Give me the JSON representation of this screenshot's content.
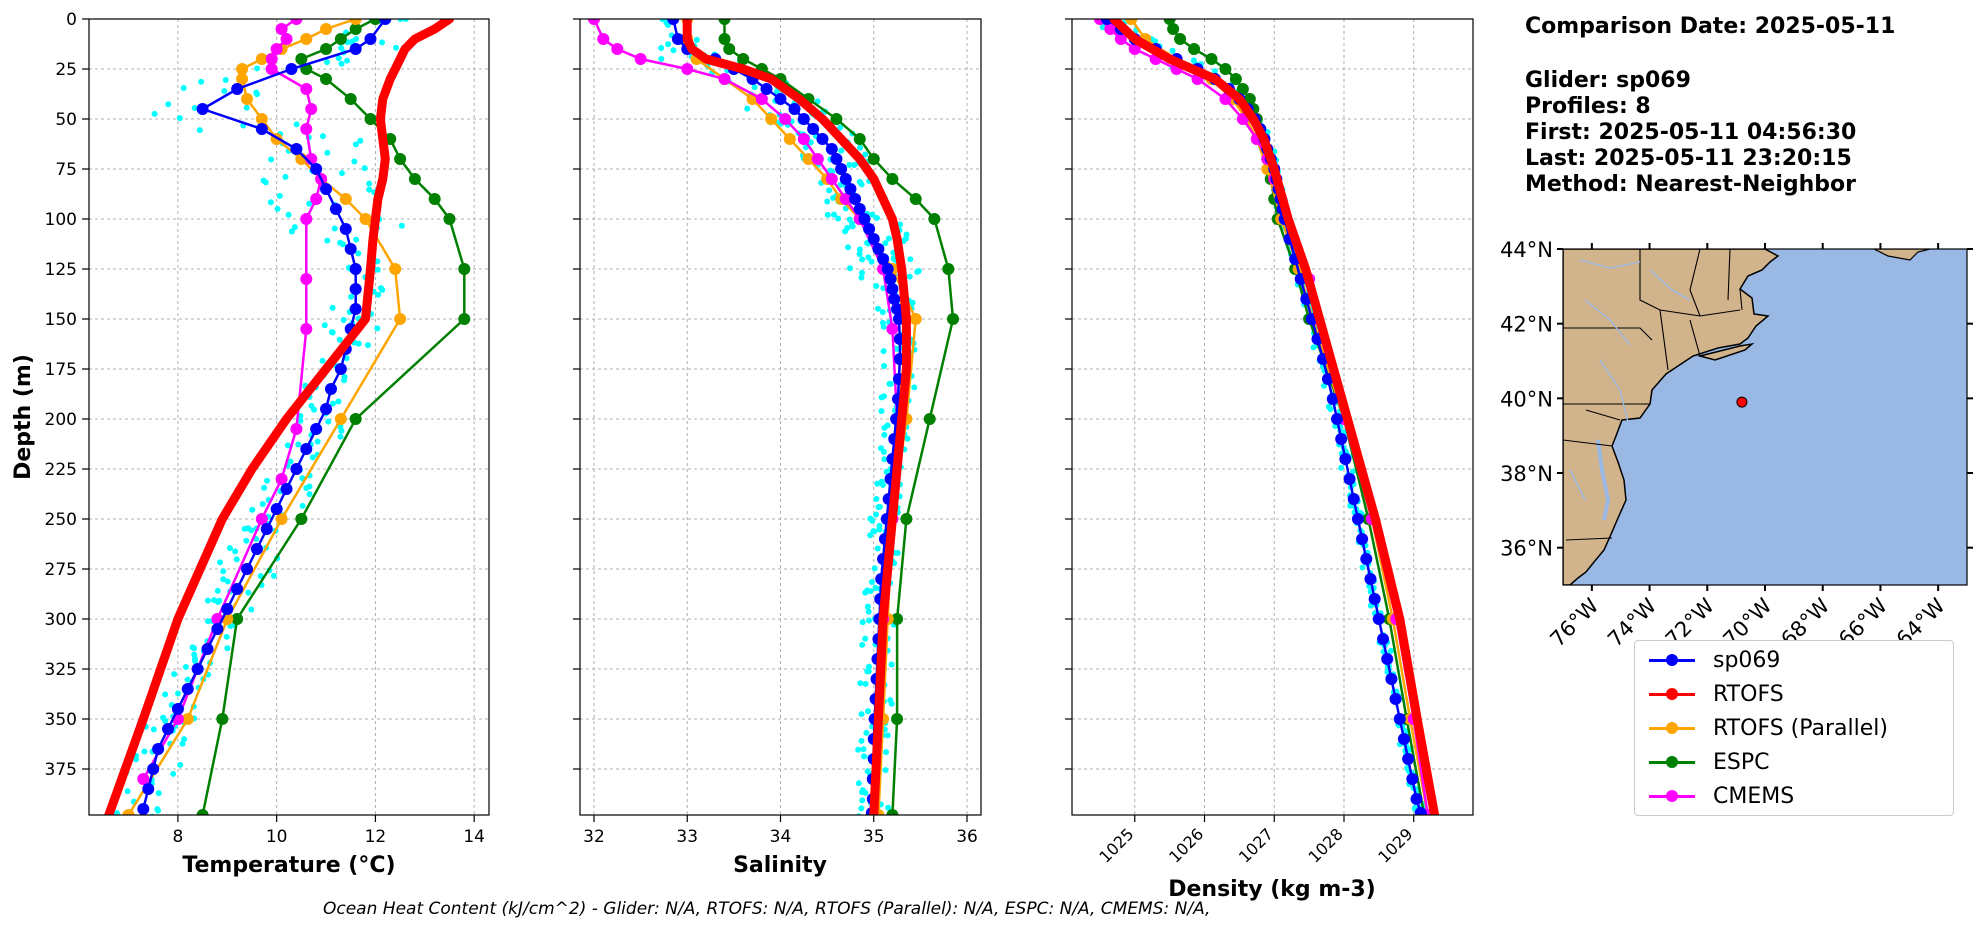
{
  "info": {
    "date_line": "Comparison Date: 2025-05-11",
    "glider_line": "Glider: sp069",
    "profiles_line": "Profiles: 8",
    "first_line": "First: 2025-05-11 04:56:30",
    "last_line": "Last: 2025-05-11 23:20:15",
    "method_line": "Method: Nearest-Neighbor"
  },
  "footer": "Ocean Heat Content (kJ/cm^2) - Glider: N/A,  RTOFS: N/A,  RTOFS (Parallel): N/A,  ESPC: N/A,  CMEMS: N/A,",
  "colors": {
    "sp069": "#0000ff",
    "RTOFS": "#ff0000",
    "RTOFS (Parallel)": "#ffa500",
    "ESPC": "#008000",
    "CMEMS": "#ff00ff",
    "glider_raw": "#00ffff",
    "land": "#d2b48c",
    "ocean": "#9ab8e4"
  },
  "legend": [
    {
      "label": "sp069",
      "color": "#0000ff"
    },
    {
      "label": "RTOFS",
      "color": "#ff0000"
    },
    {
      "label": "RTOFS (Parallel)",
      "color": "#ffa500"
    },
    {
      "label": "ESPC",
      "color": "#008000"
    },
    {
      "label": "CMEMS",
      "color": "#ff00ff"
    }
  ],
  "chart_data": [
    {
      "type": "line",
      "xlabel": "Temperature (°C)",
      "ylabel": "Depth (m)",
      "xlim": [
        6.2,
        14.3
      ],
      "ylim": [
        398,
        0
      ],
      "xticks": [
        8,
        10,
        12,
        14
      ],
      "xtick_labels": [
        "8",
        "10",
        "12",
        "14"
      ],
      "yticks": [
        0,
        25,
        50,
        75,
        100,
        125,
        150,
        175,
        200,
        225,
        250,
        275,
        300,
        325,
        350,
        375
      ],
      "ytick_labels": [
        "0",
        "25",
        "50",
        "75",
        "100",
        "125",
        "150",
        "175",
        "200",
        "225",
        "250",
        "275",
        "300",
        "325",
        "350",
        "375"
      ],
      "grid": true,
      "series": [
        {
          "name": "sp069",
          "depth": [
            0,
            10,
            15,
            25,
            35,
            45,
            55,
            65,
            75,
            85,
            95,
            105,
            115,
            125,
            135,
            145,
            155,
            165,
            175,
            185,
            195,
            205,
            215,
            225,
            235,
            245,
            255,
            265,
            275,
            285,
            295,
            305,
            315,
            325,
            335,
            345,
            355,
            365,
            375,
            385,
            395
          ],
          "values": [
            12.2,
            11.9,
            11.6,
            10.3,
            9.2,
            8.5,
            9.7,
            10.4,
            10.8,
            11.0,
            11.2,
            11.4,
            11.5,
            11.6,
            11.6,
            11.6,
            11.5,
            11.4,
            11.3,
            11.1,
            11.0,
            10.8,
            10.6,
            10.4,
            10.2,
            10.0,
            9.8,
            9.6,
            9.4,
            9.2,
            9.0,
            8.8,
            8.6,
            8.4,
            8.2,
            8.0,
            7.8,
            7.6,
            7.5,
            7.4,
            7.3
          ]
        },
        {
          "name": "RTOFS",
          "depth": [
            0,
            5,
            10,
            15,
            20,
            25,
            30,
            40,
            50,
            60,
            70,
            80,
            90,
            100,
            110,
            125,
            150,
            175,
            200,
            225,
            250,
            300,
            350,
            398
          ],
          "values": [
            13.5,
            13.2,
            12.8,
            12.6,
            12.5,
            12.4,
            12.3,
            12.15,
            12.1,
            12.15,
            12.2,
            12.15,
            12.05,
            12.0,
            11.95,
            11.9,
            11.8,
            11.0,
            10.2,
            9.5,
            8.9,
            8.0,
            7.3,
            6.6
          ]
        },
        {
          "name": "RTOFS (Parallel)",
          "depth": [
            0,
            5,
            10,
            15,
            20,
            25,
            30,
            40,
            50,
            60,
            70,
            80,
            90,
            100,
            125,
            150,
            200,
            250,
            300,
            350,
            398
          ],
          "values": [
            11.6,
            11.0,
            10.6,
            10.1,
            9.7,
            9.3,
            9.3,
            9.4,
            9.7,
            10.0,
            10.5,
            10.9,
            11.4,
            11.8,
            12.4,
            12.5,
            11.3,
            10.1,
            9.0,
            8.2,
            7.0
          ]
        },
        {
          "name": "ESPC",
          "depth": [
            0,
            5,
            10,
            15,
            20,
            25,
            30,
            40,
            50,
            60,
            70,
            80,
            90,
            100,
            125,
            150,
            200,
            250,
            300,
            350,
            398
          ],
          "values": [
            12.0,
            11.6,
            11.3,
            11.0,
            10.5,
            10.6,
            11.0,
            11.5,
            11.9,
            12.3,
            12.5,
            12.8,
            13.2,
            13.5,
            13.8,
            13.8,
            11.6,
            10.5,
            9.2,
            8.9,
            8.5
          ]
        },
        {
          "name": "CMEMS",
          "depth": [
            0,
            5,
            10,
            15,
            20,
            25,
            35,
            45,
            55,
            70,
            80,
            90,
            100,
            130,
            155,
            205,
            230,
            250,
            300,
            350,
            380
          ],
          "values": [
            10.4,
            10.1,
            10.2,
            10.0,
            9.9,
            9.9,
            10.6,
            10.7,
            10.6,
            10.7,
            10.9,
            10.8,
            10.6,
            10.6,
            10.6,
            10.4,
            10.1,
            9.7,
            8.8,
            8.0,
            7.3
          ]
        }
      ]
    },
    {
      "type": "line",
      "xlabel": "Salinity",
      "ylabel": "",
      "xlim": [
        31.85,
        36.15
      ],
      "ylim": [
        398,
        0
      ],
      "xticks": [
        32,
        33,
        34,
        35,
        36
      ],
      "xtick_labels": [
        "32",
        "33",
        "34",
        "35",
        "36"
      ],
      "yticks": [
        0,
        25,
        50,
        75,
        100,
        125,
        150,
        175,
        200,
        225,
        250,
        275,
        300,
        325,
        350,
        375
      ],
      "grid": true,
      "series": [
        {
          "name": "sp069",
          "depth": [
            0,
            10,
            15,
            20,
            25,
            30,
            35,
            40,
            45,
            50,
            55,
            60,
            65,
            70,
            75,
            80,
            85,
            90,
            95,
            100,
            105,
            110,
            115,
            120,
            125,
            130,
            135,
            140,
            145,
            150,
            160,
            170,
            180,
            190,
            200,
            210,
            220,
            230,
            240,
            250,
            260,
            270,
            280,
            290,
            300,
            310,
            320,
            330,
            340,
            350,
            360,
            370,
            380,
            390,
            397
          ],
          "values": [
            32.85,
            32.9,
            33.0,
            33.3,
            33.5,
            33.7,
            33.85,
            34.0,
            34.15,
            34.25,
            34.35,
            34.45,
            34.55,
            34.6,
            34.65,
            34.7,
            34.75,
            34.8,
            34.85,
            34.9,
            34.95,
            35.0,
            35.05,
            35.1,
            35.15,
            35.18,
            35.2,
            35.22,
            35.25,
            35.27,
            35.28,
            35.28,
            35.27,
            35.26,
            35.24,
            35.22,
            35.2,
            35.18,
            35.16,
            35.14,
            35.12,
            35.1,
            35.08,
            35.07,
            35.06,
            35.05,
            35.04,
            35.03,
            35.02,
            35.01,
            35.0,
            35.0,
            34.99,
            34.99,
            34.98
          ]
        },
        {
          "name": "RTOFS",
          "depth": [
            0,
            10,
            15,
            20,
            25,
            30,
            40,
            50,
            60,
            70,
            80,
            90,
            100,
            110,
            125,
            150,
            175,
            200,
            250,
            300,
            350,
            398
          ],
          "values": [
            33.0,
            33.0,
            33.05,
            33.2,
            33.6,
            33.9,
            34.2,
            34.45,
            34.65,
            34.85,
            35.0,
            35.1,
            35.2,
            35.25,
            35.3,
            35.35,
            35.35,
            35.3,
            35.2,
            35.1,
            35.05,
            35.0
          ]
        },
        {
          "name": "RTOFS (Parallel)",
          "depth": [
            0,
            10,
            20,
            30,
            40,
            50,
            60,
            70,
            80,
            90,
            100,
            125,
            150,
            200,
            250,
            300,
            350,
            398
          ],
          "values": [
            33.0,
            33.0,
            33.1,
            33.4,
            33.7,
            33.9,
            34.1,
            34.3,
            34.5,
            34.65,
            34.85,
            35.2,
            35.45,
            35.35,
            35.2,
            35.15,
            35.1,
            35.05
          ]
        },
        {
          "name": "ESPC",
          "depth": [
            0,
            10,
            15,
            20,
            25,
            30,
            40,
            50,
            60,
            70,
            80,
            90,
            100,
            125,
            150,
            200,
            250,
            300,
            350,
            398
          ],
          "values": [
            33.4,
            33.4,
            33.45,
            33.6,
            33.8,
            34.0,
            34.3,
            34.6,
            34.85,
            35.0,
            35.2,
            35.45,
            35.65,
            35.8,
            35.85,
            35.6,
            35.35,
            35.25,
            35.25,
            35.2
          ]
        },
        {
          "name": "CMEMS",
          "depth": [
            0,
            10,
            15,
            20,
            25,
            30,
            40,
            50,
            60,
            70,
            80,
            90,
            100,
            125,
            155,
            200,
            250,
            300,
            350,
            398
          ],
          "values": [
            32.0,
            32.1,
            32.25,
            32.5,
            33.0,
            33.4,
            33.8,
            34.05,
            34.25,
            34.4,
            34.55,
            34.7,
            34.85,
            35.1,
            35.2,
            35.25,
            35.2,
            35.1,
            35.02,
            34.98
          ]
        }
      ]
    },
    {
      "type": "line",
      "xlabel": "Density (kg m-3)",
      "ylabel": "",
      "xlim": [
        1024.1,
        1029.85
      ],
      "ylim": [
        398,
        0
      ],
      "xticks": [
        1025,
        1026,
        1027,
        1028,
        1029
      ],
      "xtick_labels": [
        "1025",
        "1026",
        "1027",
        "1028",
        "1029"
      ],
      "yticks": [
        0,
        25,
        50,
        75,
        100,
        125,
        150,
        175,
        200,
        225,
        250,
        275,
        300,
        325,
        350,
        375
      ],
      "grid": true,
      "series": [
        {
          "name": "sp069",
          "depth": [
            0,
            5,
            10,
            15,
            20,
            25,
            30,
            35,
            40,
            45,
            50,
            55,
            60,
            65,
            70,
            75,
            80,
            85,
            90,
            95,
            100,
            110,
            120,
            130,
            140,
            150,
            160,
            170,
            180,
            190,
            200,
            210,
            220,
            230,
            240,
            250,
            260,
            270,
            280,
            290,
            300,
            310,
            320,
            330,
            340,
            350,
            360,
            370,
            380,
            390,
            397
          ],
          "values": [
            1024.6,
            1024.8,
            1025.0,
            1025.3,
            1025.6,
            1025.9,
            1026.15,
            1026.35,
            1026.5,
            1026.62,
            1026.72,
            1026.8,
            1026.86,
            1026.9,
            1026.95,
            1027.0,
            1027.03,
            1027.06,
            1027.09,
            1027.12,
            1027.15,
            1027.22,
            1027.3,
            1027.38,
            1027.46,
            1027.54,
            1027.62,
            1027.7,
            1027.77,
            1027.84,
            1027.9,
            1027.96,
            1028.02,
            1028.08,
            1028.14,
            1028.2,
            1028.26,
            1028.32,
            1028.38,
            1028.44,
            1028.5,
            1028.56,
            1028.62,
            1028.68,
            1028.74,
            1028.8,
            1028.86,
            1028.92,
            1028.98,
            1029.04,
            1029.1
          ]
        },
        {
          "name": "RTOFS",
          "depth": [
            0,
            10,
            20,
            30,
            40,
            50,
            60,
            75,
            100,
            125,
            150,
            200,
            250,
            300,
            350,
            398
          ],
          "values": [
            1024.7,
            1025.0,
            1025.5,
            1026.15,
            1026.5,
            1026.7,
            1026.85,
            1027.0,
            1027.2,
            1027.45,
            1027.65,
            1028.05,
            1028.45,
            1028.8,
            1029.05,
            1029.3
          ]
        },
        {
          "name": "RTOFS (Parallel)",
          "depth": [
            0,
            10,
            20,
            30,
            40,
            50,
            60,
            75,
            100,
            125,
            150,
            200,
            250,
            300,
            350,
            398
          ],
          "values": [
            1024.95,
            1025.15,
            1025.6,
            1026.1,
            1026.4,
            1026.6,
            1026.75,
            1026.9,
            1027.1,
            1027.35,
            1027.55,
            1028.0,
            1028.4,
            1028.7,
            1028.95,
            1029.2
          ]
        },
        {
          "name": "ESPC",
          "depth": [
            0,
            5,
            10,
            15,
            20,
            25,
            30,
            35,
            40,
            45,
            50,
            60,
            70,
            80,
            90,
            100,
            125,
            150,
            200,
            250,
            300,
            350,
            398
          ],
          "values": [
            1025.5,
            1025.55,
            1025.65,
            1025.85,
            1026.1,
            1026.3,
            1026.45,
            1026.55,
            1026.65,
            1026.7,
            1026.75,
            1026.85,
            1026.9,
            1026.95,
            1027.0,
            1027.05,
            1027.3,
            1027.5,
            1028.0,
            1028.35,
            1028.65,
            1028.9,
            1029.15
          ]
        },
        {
          "name": "CMEMS",
          "depth": [
            0,
            5,
            10,
            15,
            20,
            25,
            30,
            40,
            50,
            60,
            70,
            80,
            90,
            100,
            130,
            150,
            200,
            250,
            300,
            350,
            398
          ],
          "values": [
            1024.5,
            1024.65,
            1024.8,
            1025.0,
            1025.3,
            1025.6,
            1025.9,
            1026.3,
            1026.55,
            1026.75,
            1026.9,
            1027.0,
            1027.1,
            1027.15,
            1027.5,
            1027.6,
            1028.0,
            1028.4,
            1028.75,
            1029.0,
            1029.2
          ]
        }
      ]
    },
    {
      "type": "map",
      "xtick_labels": [
        "76°W",
        "74°W",
        "72°W",
        "70°W",
        "68°W",
        "66°W",
        "64°W"
      ],
      "xticks": [
        -76,
        -74,
        -72,
        -70,
        -68,
        -66,
        -64
      ],
      "ytick_labels": [
        "44°N",
        "42°N",
        "40°N",
        "38°N",
        "36°N"
      ],
      "yticks": [
        44,
        42,
        40,
        38,
        36
      ],
      "xlim": [
        -77,
        -63
      ],
      "ylim": [
        35,
        44
      ],
      "glider_location": {
        "lon": -70.8,
        "lat": 39.9
      }
    }
  ]
}
